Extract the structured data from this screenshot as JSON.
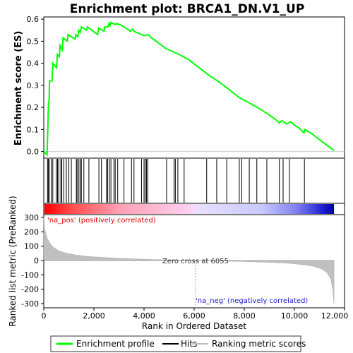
{
  "chart_data": {
    "type": "line",
    "title": "Enrichment plot: BRCA1_DN.V1_UP",
    "es_panel": {
      "ylabel": "Enrichment score (ES)",
      "ylim": [
        -0.03,
        0.61
      ],
      "yticks": [
        0.0,
        0.1,
        0.2,
        0.3,
        0.4,
        0.5,
        0.6
      ],
      "ytick_labels": [
        "0.0",
        "0.1",
        "0.2",
        "0.3",
        "0.4",
        "0.5",
        "0.6"
      ],
      "series_name": "Enrichment profile",
      "color": "#00ff00",
      "points": [
        [
          0,
          0.0
        ],
        [
          130,
          -0.015
        ],
        [
          160,
          0.1
        ],
        [
          190,
          0.22
        ],
        [
          210,
          0.23
        ],
        [
          230,
          0.32
        ],
        [
          330,
          0.32
        ],
        [
          360,
          0.4
        ],
        [
          510,
          0.38
        ],
        [
          540,
          0.44
        ],
        [
          620,
          0.43
        ],
        [
          650,
          0.48
        ],
        [
          740,
          0.46
        ],
        [
          770,
          0.515
        ],
        [
          940,
          0.5
        ],
        [
          970,
          0.53
        ],
        [
          1250,
          0.51
        ],
        [
          1280,
          0.53
        ],
        [
          1360,
          0.52
        ],
        [
          1390,
          0.55
        ],
        [
          1460,
          0.54
        ],
        [
          1500,
          0.565
        ],
        [
          1700,
          0.55
        ],
        [
          1740,
          0.565
        ],
        [
          2150,
          0.53
        ],
        [
          2190,
          0.56
        ],
        [
          2400,
          0.545
        ],
        [
          2440,
          0.565
        ],
        [
          2560,
          0.565
        ],
        [
          2600,
          0.58
        ],
        [
          2640,
          0.57
        ],
        [
          2680,
          0.585
        ],
        [
          2860,
          0.575
        ],
        [
          2900,
          0.58
        ],
        [
          3050,
          0.575
        ],
        [
          3400,
          0.55
        ],
        [
          3450,
          0.545
        ],
        [
          3550,
          0.555
        ],
        [
          3600,
          0.545
        ],
        [
          3900,
          0.53
        ],
        [
          4000,
          0.525
        ],
        [
          4150,
          0.53
        ],
        [
          4300,
          0.515
        ],
        [
          4900,
          0.465
        ],
        [
          5400,
          0.44
        ],
        [
          5800,
          0.415
        ],
        [
          6200,
          0.38
        ],
        [
          6600,
          0.345
        ],
        [
          7000,
          0.315
        ],
        [
          7400,
          0.28
        ],
        [
          7800,
          0.245
        ],
        [
          8200,
          0.22
        ],
        [
          8600,
          0.195
        ],
        [
          9000,
          0.165
        ],
        [
          9200,
          0.15
        ],
        [
          9400,
          0.13
        ],
        [
          9500,
          0.14
        ],
        [
          9700,
          0.125
        ],
        [
          9850,
          0.135
        ],
        [
          10000,
          0.12
        ],
        [
          10200,
          0.105
        ],
        [
          10380,
          0.085
        ],
        [
          10420,
          0.1
        ],
        [
          10700,
          0.08
        ],
        [
          11100,
          0.045
        ],
        [
          11580,
          0.005
        ]
      ]
    },
    "hits": [
      150,
      180,
      220,
      300,
      360,
      500,
      550,
      600,
      680,
      720,
      800,
      900,
      1000,
      1100,
      1300,
      1330,
      1400,
      1450,
      1500,
      1600,
      1800,
      2200,
      2300,
      2500,
      2550,
      2620,
      2680,
      2800,
      2850,
      2950,
      3200,
      3500,
      3600,
      3900,
      4000,
      4050,
      4100,
      4150,
      4900,
      5200,
      5250,
      5350,
      5600,
      6500,
      6900,
      7300,
      7800,
      7900,
      8200,
      8500,
      8900,
      9400,
      9550,
      9800,
      10400
    ],
    "metric_panel": {
      "ylabel": "Ranked list metric (PreRanked)",
      "xlabel": "Rank in Ordered Dataset",
      "ylim": [
        -330,
        320
      ],
      "yticks": [
        -300,
        -200,
        -100,
        0,
        100,
        200,
        300
      ],
      "ytick_labels": [
        "-300",
        "-200",
        "-100",
        "0",
        "100",
        "200",
        "300"
      ],
      "xlim": [
        0,
        12000
      ],
      "xticks": [
        0,
        2000,
        4000,
        6000,
        8000,
        10000,
        12000
      ],
      "xtick_labels": [
        "0",
        "2,000",
        "4,000",
        "6,000",
        "8,000",
        "10,000",
        "12,000"
      ],
      "profile": [
        [
          0,
          300
        ],
        [
          30,
          230
        ],
        [
          80,
          190
        ],
        [
          150,
          150
        ],
        [
          250,
          120
        ],
        [
          400,
          90
        ],
        [
          600,
          68
        ],
        [
          900,
          50
        ],
        [
          1300,
          38
        ],
        [
          1800,
          28
        ],
        [
          2500,
          20
        ],
        [
          3200,
          14
        ],
        [
          4000,
          9
        ],
        [
          5000,
          4
        ],
        [
          6055,
          0
        ],
        [
          7000,
          -3
        ],
        [
          8000,
          -7
        ],
        [
          9000,
          -13
        ],
        [
          9800,
          -20
        ],
        [
          10400,
          -30
        ],
        [
          10800,
          -42
        ],
        [
          11100,
          -60
        ],
        [
          11300,
          -85
        ],
        [
          11450,
          -130
        ],
        [
          11530,
          -200
        ],
        [
          11580,
          -300
        ]
      ]
    },
    "dataset_size": 11580,
    "zero_cross": 6055,
    "annotations": {
      "pos_label": "'na_pos' (positively correlated)",
      "neg_label": "'na_neg' (negatively correlated)",
      "zero_label": "Zero cross at 6055"
    },
    "legend": {
      "placement": "bottom",
      "items": [
        {
          "label": "Enrichment profile",
          "color": "#00ff00"
        },
        {
          "label": "Hits",
          "color": "#000000"
        },
        {
          "label": "Ranking metric scores",
          "color": "#c0c0c0"
        }
      ]
    }
  }
}
